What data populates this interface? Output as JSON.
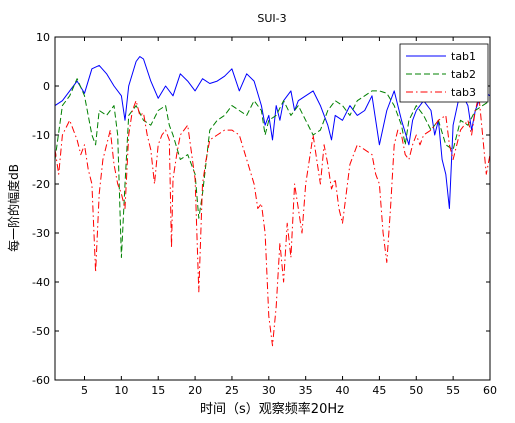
{
  "chart_data": {
    "type": "line",
    "title": "SUI-3",
    "xlabel": "时间（s）观察频率20Hz",
    "ylabel": "每一阶的幅度dB",
    "xlim": [
      1,
      60
    ],
    "ylim": [
      -60,
      10
    ],
    "xticks": [
      5,
      10,
      15,
      20,
      25,
      30,
      35,
      40,
      45,
      50,
      55,
      60
    ],
    "yticks": [
      10,
      0,
      -10,
      -20,
      -30,
      -40,
      -50,
      -60
    ],
    "grid": false,
    "legend_position": "top-right",
    "series": [
      {
        "name": "tab1",
        "color": "#0000ff",
        "style": "solid",
        "points": [
          [
            1,
            -4
          ],
          [
            2,
            -3
          ],
          [
            3,
            -1
          ],
          [
            4,
            1
          ],
          [
            5,
            -1.5
          ],
          [
            6,
            3.5
          ],
          [
            7,
            4.2
          ],
          [
            8,
            2.5
          ],
          [
            9,
            0
          ],
          [
            10,
            -2
          ],
          [
            10.5,
            -7
          ],
          [
            11,
            0
          ],
          [
            12,
            5
          ],
          [
            12.5,
            6
          ],
          [
            13,
            5.5
          ],
          [
            14,
            1
          ],
          [
            15,
            -2.5
          ],
          [
            16,
            0
          ],
          [
            17,
            -2
          ],
          [
            18,
            2.5
          ],
          [
            19,
            1
          ],
          [
            20,
            -1
          ],
          [
            21,
            1.5
          ],
          [
            22,
            0.5
          ],
          [
            23,
            1
          ],
          [
            24,
            2
          ],
          [
            25,
            3.5
          ],
          [
            26,
            -1
          ],
          [
            27,
            2.5
          ],
          [
            28,
            1
          ],
          [
            29,
            -4
          ],
          [
            29.5,
            -8
          ],
          [
            30,
            -6
          ],
          [
            30.5,
            -11
          ],
          [
            31,
            -4
          ],
          [
            31.5,
            -7
          ],
          [
            32,
            -3
          ],
          [
            33,
            -1
          ],
          [
            33.5,
            -5
          ],
          [
            34,
            -3
          ],
          [
            35,
            -2
          ],
          [
            36,
            -1
          ],
          [
            37,
            -4
          ],
          [
            38,
            -8
          ],
          [
            38.5,
            -11
          ],
          [
            39,
            -6
          ],
          [
            40,
            -7
          ],
          [
            41,
            -4
          ],
          [
            42,
            -6
          ],
          [
            43,
            -5
          ],
          [
            44,
            -2
          ],
          [
            44.5,
            -7
          ],
          [
            45,
            -12
          ],
          [
            46,
            -5
          ],
          [
            47,
            -1
          ],
          [
            48,
            -7
          ],
          [
            49,
            -12
          ],
          [
            49.5,
            -7
          ],
          [
            50,
            -5
          ],
          [
            51,
            -3
          ],
          [
            52,
            -5
          ],
          [
            52.5,
            -10
          ],
          [
            53,
            -7
          ],
          [
            53.5,
            -15
          ],
          [
            54,
            -18
          ],
          [
            54.5,
            -25
          ],
          [
            55,
            -8
          ],
          [
            56,
            -1
          ],
          [
            57,
            -4
          ],
          [
            57.5,
            -9
          ],
          [
            58,
            -5
          ],
          [
            59,
            -1
          ],
          [
            60,
            -2
          ]
        ]
      },
      {
        "name": "tab2",
        "color": "#008000",
        "style": "dashed",
        "points": [
          [
            1,
            -15
          ],
          [
            2,
            -4
          ],
          [
            3,
            -2
          ],
          [
            4,
            1.5
          ],
          [
            5,
            -2
          ],
          [
            6,
            -10
          ],
          [
            6.5,
            -12
          ],
          [
            7,
            -5
          ],
          [
            8,
            -6
          ],
          [
            9,
            -4
          ],
          [
            9.5,
            -10
          ],
          [
            10,
            -35
          ],
          [
            10.5,
            -20
          ],
          [
            11,
            -6
          ],
          [
            12,
            -4
          ],
          [
            13,
            -7
          ],
          [
            14,
            -8
          ],
          [
            15,
            -5
          ],
          [
            16,
            -4
          ],
          [
            16.5,
            -8
          ],
          [
            17,
            -10
          ],
          [
            18,
            -15
          ],
          [
            19,
            -14
          ],
          [
            20,
            -18
          ],
          [
            20.5,
            -27
          ],
          [
            21,
            -22
          ],
          [
            22,
            -9
          ],
          [
            23,
            -7
          ],
          [
            24,
            -6
          ],
          [
            25,
            -4
          ],
          [
            26,
            -5
          ],
          [
            27,
            -6
          ],
          [
            28,
            -3
          ],
          [
            29,
            -5
          ],
          [
            29.5,
            -10
          ],
          [
            30,
            -7
          ],
          [
            31,
            -6
          ],
          [
            32,
            -3
          ],
          [
            33,
            -6
          ],
          [
            34,
            -4
          ],
          [
            35,
            -7
          ],
          [
            36,
            -10
          ],
          [
            37,
            -9
          ],
          [
            38,
            -5
          ],
          [
            39,
            -3
          ],
          [
            40,
            -4
          ],
          [
            41,
            -6
          ],
          [
            42,
            -3
          ],
          [
            43,
            -2
          ],
          [
            44,
            -1
          ],
          [
            45,
            -1
          ],
          [
            46,
            -1.5
          ],
          [
            47,
            -4
          ],
          [
            48,
            -8
          ],
          [
            48.5,
            -12
          ],
          [
            49,
            -7
          ],
          [
            50,
            -4
          ],
          [
            51,
            -6
          ],
          [
            52,
            -9
          ],
          [
            53,
            -7
          ],
          [
            54,
            -12
          ],
          [
            55,
            -13
          ],
          [
            56,
            -7
          ],
          [
            57,
            -8
          ],
          [
            58,
            -5
          ],
          [
            59,
            -4
          ],
          [
            60,
            -3
          ]
        ]
      },
      {
        "name": "tab3",
        "color": "#ff0000",
        "style": "dashdot",
        "points": [
          [
            1,
            -13
          ],
          [
            1.5,
            -18
          ],
          [
            2,
            -10
          ],
          [
            3,
            -7
          ],
          [
            4,
            -11
          ],
          [
            4.5,
            -14
          ],
          [
            5,
            -12
          ],
          [
            5.5,
            -17
          ],
          [
            6,
            -20
          ],
          [
            6.5,
            -38
          ],
          [
            7,
            -22
          ],
          [
            7.5,
            -15
          ],
          [
            8,
            -12
          ],
          [
            8.5,
            -9
          ],
          [
            9,
            -16
          ],
          [
            9.5,
            -20
          ],
          [
            10,
            -22
          ],
          [
            10.5,
            -25
          ],
          [
            11,
            -10
          ],
          [
            11.5,
            -5
          ],
          [
            12,
            -3
          ],
          [
            12.5,
            -6
          ],
          [
            13,
            -5.5
          ],
          [
            13.5,
            -10
          ],
          [
            14,
            -13
          ],
          [
            14.5,
            -20
          ],
          [
            15,
            -12
          ],
          [
            15.5,
            -10
          ],
          [
            16,
            -9
          ],
          [
            16.5,
            -11
          ],
          [
            16.8,
            -33
          ],
          [
            17,
            -19
          ],
          [
            17.5,
            -14
          ],
          [
            18,
            -10
          ],
          [
            19,
            -8
          ],
          [
            20,
            -19
          ],
          [
            20.5,
            -42
          ],
          [
            21,
            -20
          ],
          [
            21.5,
            -15
          ],
          [
            22,
            -11
          ],
          [
            23,
            -10
          ],
          [
            24,
            -9
          ],
          [
            25,
            -9
          ],
          [
            26,
            -10
          ],
          [
            27,
            -15
          ],
          [
            28,
            -20
          ],
          [
            28.5,
            -25
          ],
          [
            29,
            -24
          ],
          [
            29.5,
            -30
          ],
          [
            30,
            -47
          ],
          [
            30.5,
            -53
          ],
          [
            31,
            -45
          ],
          [
            31.5,
            -32
          ],
          [
            32,
            -40
          ],
          [
            32.5,
            -28
          ],
          [
            33,
            -35
          ],
          [
            33.5,
            -20
          ],
          [
            34,
            -25
          ],
          [
            34.5,
            -30
          ],
          [
            35,
            -20
          ],
          [
            35.5,
            -15
          ],
          [
            36,
            -10
          ],
          [
            36.5,
            -15
          ],
          [
            37,
            -20
          ],
          [
            37.5,
            -12
          ],
          [
            38,
            -16
          ],
          [
            38.5,
            -21
          ],
          [
            39,
            -19
          ],
          [
            39.5,
            -25
          ],
          [
            40,
            -28
          ],
          [
            40.5,
            -22
          ],
          [
            41,
            -16
          ],
          [
            42,
            -12
          ],
          [
            43,
            -13
          ],
          [
            44,
            -14
          ],
          [
            44.5,
            -18
          ],
          [
            45,
            -20
          ],
          [
            45.5,
            -30
          ],
          [
            46,
            -36
          ],
          [
            46.5,
            -25
          ],
          [
            47,
            -12
          ],
          [
            47.5,
            -9
          ],
          [
            48,
            -10
          ],
          [
            48.5,
            -14
          ],
          [
            49,
            -15
          ],
          [
            49.5,
            -12
          ],
          [
            50,
            -10
          ],
          [
            50.5,
            -12
          ],
          [
            51,
            -10
          ],
          [
            52,
            -9
          ],
          [
            53,
            -7
          ],
          [
            54,
            -6
          ],
          [
            54.5,
            -12
          ],
          [
            55,
            -15
          ],
          [
            56,
            -9
          ],
          [
            57,
            -7
          ],
          [
            57.5,
            -10
          ],
          [
            58,
            -5
          ],
          [
            58.5,
            -2
          ],
          [
            59,
            -10
          ],
          [
            59.5,
            -18
          ],
          [
            60,
            -14
          ]
        ]
      }
    ]
  }
}
